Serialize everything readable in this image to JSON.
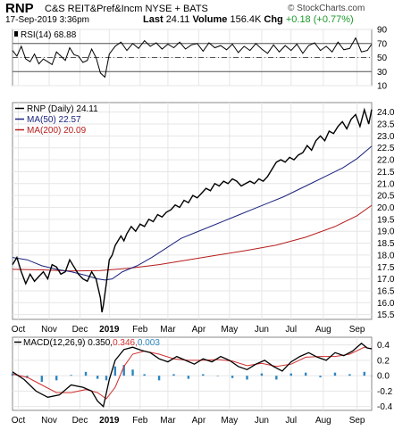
{
  "header": {
    "symbol": "RNP",
    "name": "C&S REIT&Pref&Incm NYSE + BATS",
    "date": "17-Sep-2019 3:36pm",
    "last_label": "Last",
    "last_value": "24.11",
    "volume_label": "Volume",
    "volume_value": "156.4K",
    "chg_label": "Chg",
    "chg_value": "+0.18 (+0.77%)",
    "watermark": "© StockCharts.com"
  },
  "colors": {
    "price": "#000000",
    "ma50": "#1a237e",
    "ma200": "#b71c1c",
    "macd_signal": "#d32f2f",
    "histogram": "#2e86c1",
    "grid": "#e6e6e6",
    "change_up": "#1a9a2a"
  },
  "months": [
    {
      "label": "Oct",
      "t": 4
    },
    {
      "label": "Nov",
      "t": 25
    },
    {
      "label": "Dec",
      "t": 46
    },
    {
      "label": "2019",
      "t": 66,
      "bold": true
    },
    {
      "label": "Feb",
      "t": 87
    },
    {
      "label": "Mar",
      "t": 106
    },
    {
      "label": "Apr",
      "t": 127
    },
    {
      "label": "May",
      "t": 148
    },
    {
      "label": "Jun",
      "t": 170
    },
    {
      "label": "Jul",
      "t": 190
    },
    {
      "label": "Aug",
      "t": 212
    },
    {
      "label": "Sep",
      "t": 235
    }
  ],
  "chart_data": [
    {
      "type": "line",
      "panel": "rsi",
      "legend": {
        "name": "RSI(14)",
        "value": "68.88"
      },
      "ylim": [
        10,
        90
      ],
      "yticks": [
        10,
        30,
        50,
        70,
        90
      ],
      "reference_lines": [
        30,
        50,
        70
      ],
      "series": [
        {
          "name": "RSI(14)",
          "t": [
            0,
            3,
            6,
            9,
            12,
            15,
            18,
            21,
            24,
            27,
            30,
            33,
            36,
            39,
            42,
            45,
            48,
            51,
            54,
            57,
            60,
            63,
            66,
            70,
            74,
            78,
            82,
            86,
            90,
            94,
            98,
            102,
            106,
            110,
            114,
            118,
            122,
            126,
            130,
            134,
            138,
            142,
            146,
            150,
            154,
            158,
            162,
            166,
            170,
            174,
            178,
            182,
            186,
            190,
            194,
            198,
            202,
            206,
            210,
            214,
            218,
            222,
            226,
            230,
            234,
            238,
            242,
            245
          ],
          "values": [
            60,
            52,
            66,
            48,
            44,
            55,
            41,
            48,
            44,
            40,
            58,
            52,
            46,
            64,
            54,
            52,
            43,
            46,
            62,
            50,
            28,
            22,
            55,
            66,
            72,
            60,
            70,
            63,
            74,
            66,
            71,
            62,
            69,
            64,
            72,
            62,
            68,
            70,
            59,
            71,
            64,
            67,
            61,
            69,
            57,
            66,
            60,
            70,
            62,
            56,
            68,
            58,
            67,
            60,
            69,
            56,
            67,
            71,
            60,
            66,
            58,
            72,
            61,
            63,
            78,
            58,
            60,
            69
          ]
        }
      ]
    },
    {
      "type": "line",
      "panel": "price",
      "legend": [
        {
          "name": "RNP (Daily)",
          "value": "24.11"
        },
        {
          "name": "MA(50)",
          "value": "22.57"
        },
        {
          "name": "MA(200)",
          "value": "20.09"
        }
      ],
      "ylim": [
        15.3,
        24.4
      ],
      "yticks": [
        15.5,
        16.0,
        16.5,
        17.0,
        17.5,
        18.0,
        18.5,
        19.0,
        19.5,
        20.0,
        20.5,
        21.0,
        21.5,
        22.0,
        22.5,
        23.0,
        23.5,
        24.0
      ],
      "series": [
        {
          "name": "RNP (Daily)",
          "t": [
            0,
            3,
            6,
            9,
            12,
            15,
            18,
            21,
            24,
            27,
            30,
            33,
            36,
            39,
            42,
            45,
            48,
            51,
            54,
            57,
            60,
            61,
            62,
            64,
            66,
            68,
            70,
            72,
            74,
            76,
            78,
            81,
            84,
            87,
            90,
            93,
            96,
            99,
            102,
            105,
            108,
            111,
            114,
            117,
            120,
            123,
            126,
            129,
            132,
            135,
            138,
            141,
            144,
            147,
            150,
            153,
            156,
            159,
            162,
            165,
            168,
            171,
            174,
            177,
            180,
            183,
            186,
            189,
            192,
            195,
            198,
            201,
            204,
            207,
            210,
            213,
            216,
            219,
            222,
            225,
            228,
            231,
            234,
            237,
            240,
            243,
            245
          ],
          "values": [
            17.6,
            17.9,
            17.3,
            16.8,
            17.2,
            16.9,
            17.1,
            17.3,
            17.0,
            17.6,
            17.5,
            17.2,
            17.3,
            17.8,
            17.5,
            17.2,
            17.0,
            16.9,
            17.3,
            17.0,
            16.2,
            15.6,
            15.9,
            16.8,
            17.8,
            18.0,
            18.4,
            18.6,
            18.8,
            18.6,
            18.9,
            19.2,
            19.0,
            19.3,
            19.2,
            19.5,
            19.4,
            19.7,
            19.6,
            19.8,
            19.9,
            20.1,
            20.0,
            20.3,
            20.2,
            20.5,
            20.4,
            20.6,
            20.8,
            20.7,
            21.0,
            20.9,
            21.1,
            21.0,
            21.2,
            21.1,
            20.9,
            21.0,
            21.1,
            21.0,
            21.2,
            21.1,
            21.3,
            21.6,
            21.9,
            22.0,
            21.9,
            22.1,
            22.0,
            22.2,
            22.3,
            22.6,
            22.4,
            22.8,
            23.0,
            22.8,
            23.2,
            23.1,
            23.4,
            23.6,
            23.3,
            23.7,
            23.9,
            23.4,
            24.1,
            23.5,
            24.11
          ]
        },
        {
          "name": "MA(50)",
          "t": [
            0,
            10,
            20,
            30,
            40,
            50,
            58,
            63,
            68,
            75,
            85,
            95,
            105,
            115,
            125,
            135,
            145,
            155,
            165,
            175,
            185,
            195,
            205,
            215,
            225,
            235,
            245
          ],
          "values": [
            17.9,
            17.8,
            17.55,
            17.4,
            17.3,
            17.15,
            17.0,
            16.95,
            17.0,
            17.3,
            17.55,
            17.9,
            18.3,
            18.7,
            18.95,
            19.2,
            19.45,
            19.7,
            19.95,
            20.2,
            20.45,
            20.75,
            21.05,
            21.35,
            21.65,
            22.05,
            22.57
          ]
        },
        {
          "name": "MA(200)",
          "t": [
            0,
            20,
            40,
            60,
            80,
            100,
            120,
            140,
            160,
            180,
            200,
            220,
            235,
            245
          ],
          "values": [
            17.4,
            17.38,
            17.33,
            17.35,
            17.45,
            17.6,
            17.8,
            18.0,
            18.2,
            18.42,
            18.75,
            19.2,
            19.65,
            20.09
          ]
        }
      ]
    },
    {
      "type": "line",
      "panel": "macd",
      "legend": {
        "name": "MACD(12,26,9)",
        "values": [
          "0.350",
          "0.346",
          "0.003"
        ]
      },
      "ylim": [
        -0.45,
        0.5
      ],
      "yticks": [
        -0.4,
        -0.2,
        0.0,
        0.2,
        0.4
      ],
      "series": [
        {
          "name": "MACD",
          "t": [
            0,
            8,
            16,
            24,
            32,
            40,
            48,
            54,
            58,
            62,
            66,
            70,
            76,
            82,
            88,
            94,
            100,
            106,
            112,
            118,
            124,
            130,
            136,
            142,
            148,
            154,
            160,
            166,
            172,
            178,
            184,
            190,
            196,
            202,
            208,
            214,
            220,
            226,
            232,
            238,
            242,
            245
          ],
          "values": [
            0.05,
            -0.05,
            -0.2,
            -0.28,
            -0.25,
            -0.12,
            -0.15,
            -0.2,
            -0.33,
            -0.4,
            -0.05,
            0.2,
            0.34,
            0.37,
            0.33,
            0.3,
            0.22,
            0.18,
            0.25,
            0.2,
            0.15,
            0.22,
            0.18,
            0.25,
            0.2,
            0.12,
            0.08,
            0.15,
            0.2,
            0.12,
            0.06,
            0.18,
            0.25,
            0.3,
            0.24,
            0.2,
            0.3,
            0.26,
            0.32,
            0.42,
            0.36,
            0.35
          ]
        },
        {
          "name": "Signal",
          "t": [
            0,
            10,
            20,
            30,
            40,
            50,
            58,
            64,
            70,
            76,
            82,
            90,
            100,
            110,
            120,
            130,
            140,
            150,
            160,
            170,
            180,
            190,
            200,
            210,
            220,
            230,
            240,
            245
          ],
          "values": [
            0.02,
            -0.02,
            -0.12,
            -0.22,
            -0.22,
            -0.18,
            -0.22,
            -0.3,
            -0.15,
            0.12,
            0.28,
            0.32,
            0.28,
            0.22,
            0.2,
            0.2,
            0.21,
            0.19,
            0.13,
            0.16,
            0.12,
            0.15,
            0.24,
            0.25,
            0.25,
            0.28,
            0.37,
            0.346
          ]
        }
      ],
      "histogram": {
        "t": [
          0,
          10,
          20,
          30,
          40,
          50,
          58,
          64,
          70,
          76,
          82,
          90,
          100,
          110,
          120,
          130,
          140,
          150,
          160,
          170,
          180,
          190,
          200,
          210,
          220,
          230,
          240,
          245
        ],
        "values": [
          0.03,
          -0.03,
          -0.08,
          -0.06,
          0.01,
          0.05,
          -0.04,
          -0.06,
          0.12,
          0.14,
          0.08,
          0.02,
          -0.06,
          0.02,
          -0.04,
          0.02,
          0.0,
          -0.03,
          -0.05,
          0.03,
          -0.05,
          0.03,
          0.04,
          -0.02,
          0.04,
          0.02,
          0.05,
          0.003
        ]
      }
    }
  ]
}
